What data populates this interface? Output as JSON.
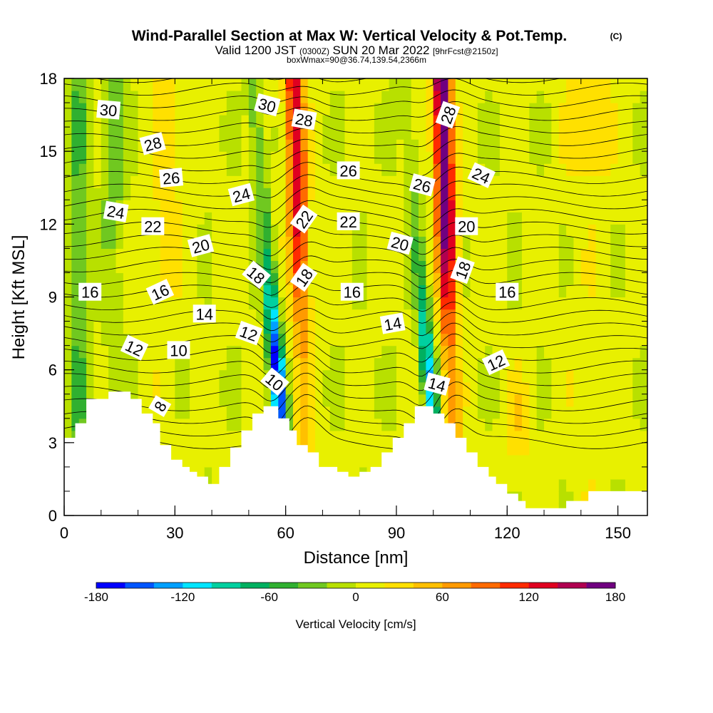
{
  "title": "Wind-Parallel Section at Max W: Vertical Velocity & Pot.Temp.",
  "title_tag": "(C)",
  "subtitle_a": "Valid 1200 JST",
  "subtitle_b": "(0300Z)",
  "subtitle_c": "SUN 20 Mar 2022",
  "subtitle_d": "[9hrFcst@2150z]",
  "subtitle2": "boxWmax=90@36.74,139.54,2366m",
  "chart_data": {
    "type": "heatmap",
    "xlabel": "Distance [nm]",
    "ylabel": "Height [Kft MSL]",
    "xlim": [
      0,
      158
    ],
    "ylim": [
      0,
      18
    ],
    "xticks": [
      0,
      30,
      60,
      90,
      120,
      150
    ],
    "yticks": [
      0,
      3,
      6,
      9,
      12,
      15,
      18
    ],
    "colorbar": {
      "label": "Vertical Velocity [cm/s]",
      "ticks": [
        -180,
        -120,
        -60,
        0,
        60,
        120,
        180
      ],
      "levels": [
        -180,
        -160,
        -140,
        -120,
        -100,
        -80,
        -60,
        -40,
        -20,
        0,
        20,
        40,
        60,
        80,
        100,
        120,
        140,
        160,
        180
      ],
      "colors": [
        "#0000ff",
        "#0055ff",
        "#00a0ff",
        "#00e5ff",
        "#00d0a0",
        "#00b060",
        "#30b030",
        "#70c820",
        "#b8e000",
        "#e8f000",
        "#ffe000",
        "#ffc000",
        "#ff9a00",
        "#ff6a00",
        "#ff2a00",
        "#e00020",
        "#b00050",
        "#700080"
      ]
    },
    "updrafts": [
      {
        "center_x_nm": 64,
        "peak_cms": 130
      },
      {
        "center_x_nm": 104,
        "peak_cms": 180
      }
    ],
    "downdrafts": [
      {
        "center_x_nm": 56,
        "peak_cms": -130
      },
      {
        "center_x_nm": 97,
        "peak_cms": -90
      }
    ],
    "terrain_kft": [
      [
        0,
        3.2
      ],
      [
        3,
        3.2
      ],
      [
        3,
        3.8
      ],
      [
        6,
        3.8
      ],
      [
        6,
        4.8
      ],
      [
        12,
        4.8
      ],
      [
        12,
        5.1
      ],
      [
        18,
        5.1
      ],
      [
        18,
        4.8
      ],
      [
        21,
        4.8
      ],
      [
        21,
        4.2
      ],
      [
        24,
        4.2
      ],
      [
        24,
        3.8
      ],
      [
        26,
        3.8
      ],
      [
        26,
        2.9
      ],
      [
        29,
        2.9
      ],
      [
        29,
        2.3
      ],
      [
        32,
        2.3
      ],
      [
        32,
        2.0
      ],
      [
        34,
        2.0
      ],
      [
        34,
        1.8
      ],
      [
        36,
        1.8
      ],
      [
        36,
        1.6
      ],
      [
        39,
        1.6
      ],
      [
        39,
        1.3
      ],
      [
        42,
        1.3
      ],
      [
        42,
        2.0
      ],
      [
        45,
        2.0
      ],
      [
        45,
        2.8
      ],
      [
        48,
        2.8
      ],
      [
        48,
        3.5
      ],
      [
        51,
        3.5
      ],
      [
        51,
        4.2
      ],
      [
        54,
        4.2
      ],
      [
        54,
        4.5
      ],
      [
        58,
        4.5
      ],
      [
        58,
        4.0
      ],
      [
        61,
        4.0
      ],
      [
        61,
        3.5
      ],
      [
        63,
        3.5
      ],
      [
        63,
        2.9
      ],
      [
        66,
        2.9
      ],
      [
        66,
        2.6
      ],
      [
        69,
        2.6
      ],
      [
        69,
        2.0
      ],
      [
        71,
        2.0
      ],
      [
        71,
        2.0
      ],
      [
        74,
        2.0
      ],
      [
        74,
        1.8
      ],
      [
        77,
        1.8
      ],
      [
        77,
        1.6
      ],
      [
        80,
        1.6
      ],
      [
        80,
        1.8
      ],
      [
        83,
        1.8
      ],
      [
        83,
        2.0
      ],
      [
        86,
        2.0
      ],
      [
        86,
        2.6
      ],
      [
        89,
        2.6
      ],
      [
        89,
        3.2
      ],
      [
        92,
        3.2
      ],
      [
        92,
        3.8
      ],
      [
        95,
        3.8
      ],
      [
        95,
        4.5
      ],
      [
        100,
        4.5
      ],
      [
        100,
        4.2
      ],
      [
        103,
        4.2
      ],
      [
        103,
        3.8
      ],
      [
        106,
        3.8
      ],
      [
        106,
        3.2
      ],
      [
        109,
        3.2
      ],
      [
        109,
        2.6
      ],
      [
        112,
        2.6
      ],
      [
        112,
        2.0
      ],
      [
        115,
        2.0
      ],
      [
        115,
        1.6
      ],
      [
        117,
        1.6
      ],
      [
        117,
        1.3
      ],
      [
        120,
        1.3
      ],
      [
        120,
        0.9
      ],
      [
        123,
        0.9
      ],
      [
        123,
        0.6
      ],
      [
        125,
        0.6
      ],
      [
        125,
        0.3
      ],
      [
        131,
        0.3
      ],
      [
        131,
        0.3
      ],
      [
        136,
        0.3
      ],
      [
        136,
        0.6
      ],
      [
        142,
        0.6
      ],
      [
        142,
        1.0
      ],
      [
        158,
        1.0
      ]
    ],
    "contour_labels": [
      {
        "text": "30",
        "x": 12,
        "y": 16.7,
        "rot": 5
      },
      {
        "text": "30",
        "x": 55,
        "y": 16.9,
        "rot": 15
      },
      {
        "text": "28",
        "x": 65,
        "y": 16.3,
        "rot": 10
      },
      {
        "text": "28",
        "x": 104,
        "y": 16.5,
        "rot": -70
      },
      {
        "text": "28",
        "x": 24,
        "y": 15.3,
        "rot": -15
      },
      {
        "text": "26",
        "x": 29,
        "y": 13.9,
        "rot": -5
      },
      {
        "text": "26",
        "x": 77,
        "y": 14.2,
        "rot": 0
      },
      {
        "text": "26",
        "x": 97,
        "y": 13.6,
        "rot": 15
      },
      {
        "text": "24",
        "x": 113,
        "y": 14.0,
        "rot": 25
      },
      {
        "text": "24",
        "x": 14,
        "y": 12.5,
        "rot": 10
      },
      {
        "text": "24",
        "x": 48,
        "y": 13.2,
        "rot": -15
      },
      {
        "text": "22",
        "x": 24,
        "y": 11.9,
        "rot": 0
      },
      {
        "text": "22",
        "x": 65,
        "y": 12.2,
        "rot": -55
      },
      {
        "text": "22",
        "x": 77,
        "y": 12.1,
        "rot": 0
      },
      {
        "text": "20",
        "x": 37,
        "y": 11.1,
        "rot": -15
      },
      {
        "text": "20",
        "x": 91,
        "y": 11.2,
        "rot": 15
      },
      {
        "text": "20",
        "x": 109,
        "y": 11.9,
        "rot": 0
      },
      {
        "text": "18",
        "x": 52,
        "y": 9.9,
        "rot": 40
      },
      {
        "text": "18",
        "x": 65,
        "y": 9.8,
        "rot": -55
      },
      {
        "text": "18",
        "x": 108,
        "y": 10.1,
        "rot": -70
      },
      {
        "text": "16",
        "x": 7,
        "y": 9.2,
        "rot": 0
      },
      {
        "text": "16",
        "x": 26,
        "y": 9.2,
        "rot": -25
      },
      {
        "text": "16",
        "x": 78,
        "y": 9.2,
        "rot": 0
      },
      {
        "text": "16",
        "x": 120,
        "y": 9.2,
        "rot": 0
      },
      {
        "text": "14",
        "x": 38,
        "y": 8.3,
        "rot": 0
      },
      {
        "text": "14",
        "x": 89,
        "y": 7.9,
        "rot": -10
      },
      {
        "text": "14",
        "x": 101,
        "y": 5.4,
        "rot": 15
      },
      {
        "text": "12",
        "x": 50,
        "y": 7.5,
        "rot": 20
      },
      {
        "text": "12",
        "x": 19,
        "y": 6.9,
        "rot": 25
      },
      {
        "text": "12",
        "x": 117,
        "y": 6.3,
        "rot": -25
      },
      {
        "text": "10",
        "x": 31,
        "y": 6.8,
        "rot": 0
      },
      {
        "text": "10",
        "x": 57,
        "y": 5.5,
        "rot": 40
      },
      {
        "text": "8",
        "x": 26,
        "y": 4.5,
        "rot": -60
      }
    ]
  }
}
